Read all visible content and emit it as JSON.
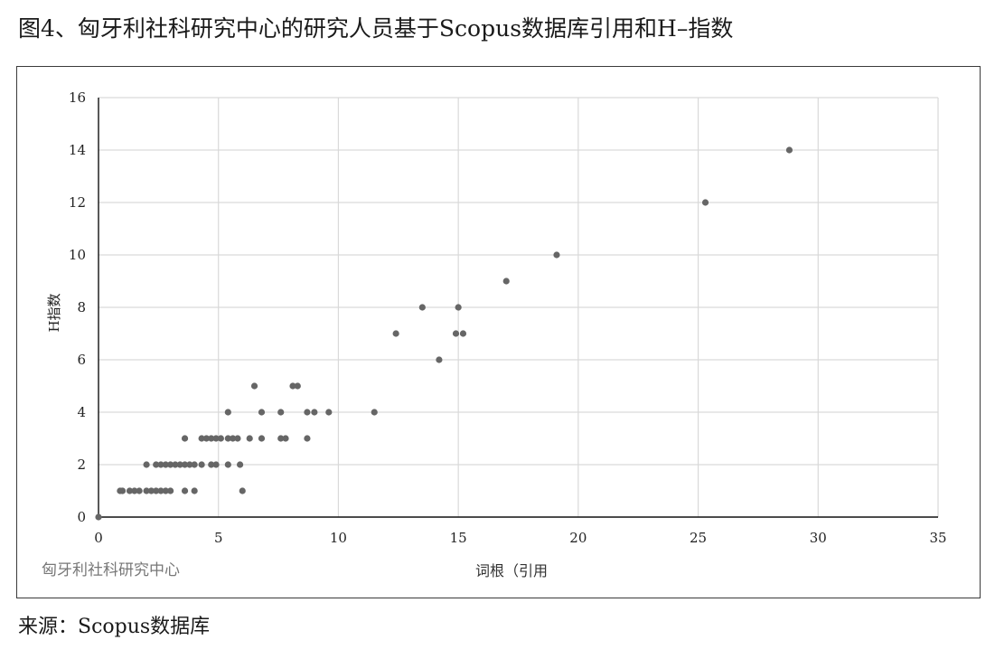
{
  "title": "图4、匈牙利社科研究中心的研究人员基于Scopus数据库引用和H–指数",
  "source": "来源：Scopus数据库",
  "chart_data": {
    "type": "scatter",
    "title": "图4、匈牙利社科研究中心的研究人员基于Scopus数据库引用和H–指数",
    "xlabel": "词根（引用",
    "ylabel": "H指数",
    "inner_note": "匈牙利社科研究中心",
    "xlim": [
      0,
      35
    ],
    "ylim": [
      0,
      16
    ],
    "x_ticks": [
      0,
      5,
      10,
      15,
      20,
      25,
      30,
      35
    ],
    "y_ticks": [
      0,
      2,
      4,
      6,
      8,
      10,
      12,
      14,
      16
    ],
    "grid": true,
    "point_color": "#666666",
    "points": [
      [
        0,
        0
      ],
      [
        0.9,
        1
      ],
      [
        1.0,
        1
      ],
      [
        1.3,
        1
      ],
      [
        1.5,
        1
      ],
      [
        1.7,
        1
      ],
      [
        2.0,
        1
      ],
      [
        2.2,
        1
      ],
      [
        2.4,
        1
      ],
      [
        2.6,
        1
      ],
      [
        2.8,
        1
      ],
      [
        3.0,
        1
      ],
      [
        3.6,
        1
      ],
      [
        4.0,
        1
      ],
      [
        6.0,
        1
      ],
      [
        2.0,
        2
      ],
      [
        2.4,
        2
      ],
      [
        2.6,
        2
      ],
      [
        2.8,
        2
      ],
      [
        3.0,
        2
      ],
      [
        3.2,
        2
      ],
      [
        3.4,
        2
      ],
      [
        3.6,
        2
      ],
      [
        3.8,
        2
      ],
      [
        4.0,
        2
      ],
      [
        4.3,
        2
      ],
      [
        4.7,
        2
      ],
      [
        4.9,
        2
      ],
      [
        5.4,
        2
      ],
      [
        5.9,
        2
      ],
      [
        3.6,
        3
      ],
      [
        4.3,
        3
      ],
      [
        4.5,
        3
      ],
      [
        4.7,
        3
      ],
      [
        4.9,
        3
      ],
      [
        5.1,
        3
      ],
      [
        5.4,
        3
      ],
      [
        5.6,
        3
      ],
      [
        5.8,
        3
      ],
      [
        6.3,
        3
      ],
      [
        6.8,
        3
      ],
      [
        7.6,
        3
      ],
      [
        7.8,
        3
      ],
      [
        8.7,
        3
      ],
      [
        5.4,
        4
      ],
      [
        6.8,
        4
      ],
      [
        7.6,
        4
      ],
      [
        8.7,
        4
      ],
      [
        9.0,
        4
      ],
      [
        9.6,
        4
      ],
      [
        11.5,
        4
      ],
      [
        6.5,
        5
      ],
      [
        8.1,
        5
      ],
      [
        8.3,
        5
      ],
      [
        14.2,
        6
      ],
      [
        12.4,
        7
      ],
      [
        14.9,
        7
      ],
      [
        15.2,
        7
      ],
      [
        13.5,
        8
      ],
      [
        15.0,
        8
      ],
      [
        17.0,
        9
      ],
      [
        19.1,
        10
      ],
      [
        25.3,
        12
      ],
      [
        28.8,
        14
      ]
    ]
  }
}
